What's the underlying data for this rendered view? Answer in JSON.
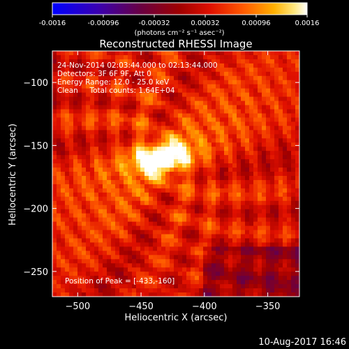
{
  "colorbar": {
    "ticks": [
      "-0.0016",
      "-0.00096",
      "-0.00032",
      "0.00032",
      "0.00096",
      "0.0016"
    ],
    "unit_label": "(photons cm⁻² s⁻¹ asec⁻²)",
    "range": [
      -0.0016,
      0.0016
    ]
  },
  "title": "Reconstructed RHESSI Image",
  "annotations": {
    "line1": "24-Nov-2014 02:03:44.000 to 02:13:44.000",
    "line2": "Detectors: 3F 6F 9F, Att 0",
    "line3": "Energy Range: 12.0 - 25.0 keV",
    "line4": "Clean     Total counts: 1.64E+04",
    "peak": "Position of Peak = [-433,-160]"
  },
  "timestamp": "10-Aug-2017 16:46",
  "chart_data": {
    "type": "heatmap",
    "title": "Reconstructed RHESSI Image",
    "xlabel": "Heliocentric X (arcsec)",
    "ylabel": "Heliocentric Y (arcsec)",
    "xlim": [
      -520,
      -325
    ],
    "ylim": [
      -270,
      -75
    ],
    "xticks": [
      -500,
      -450,
      -400,
      -350
    ],
    "yticks": [
      -100,
      -150,
      -200,
      -250
    ],
    "peak": {
      "x": -433,
      "y": -160
    },
    "colormap": "blue-purple-red-yellow-white",
    "value_range": [
      -0.0016,
      0.0016
    ]
  }
}
